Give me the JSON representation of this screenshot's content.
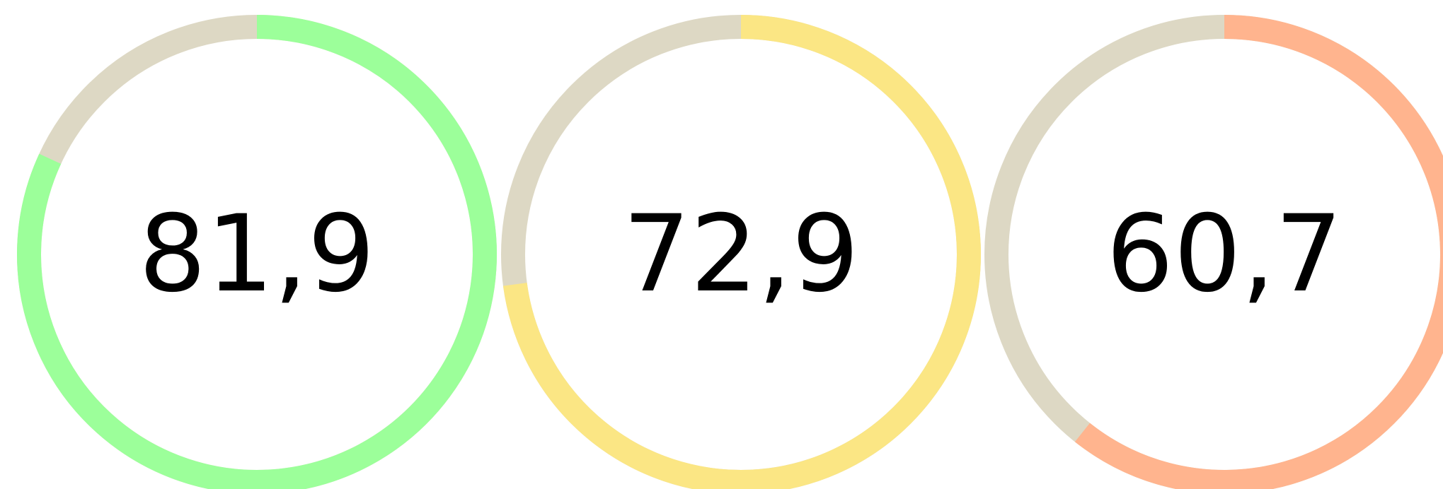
{
  "chart_data": {
    "type": "gauge",
    "values": [
      81.9,
      72.9,
      60.7
    ],
    "value_labels": [
      "81,9",
      "72,9",
      "60,7"
    ],
    "colors": [
      "#9cff9a",
      "#fbe684",
      "#ffb48e"
    ],
    "track_color": "#ddd8c4",
    "ylim": [
      0,
      100
    ]
  }
}
